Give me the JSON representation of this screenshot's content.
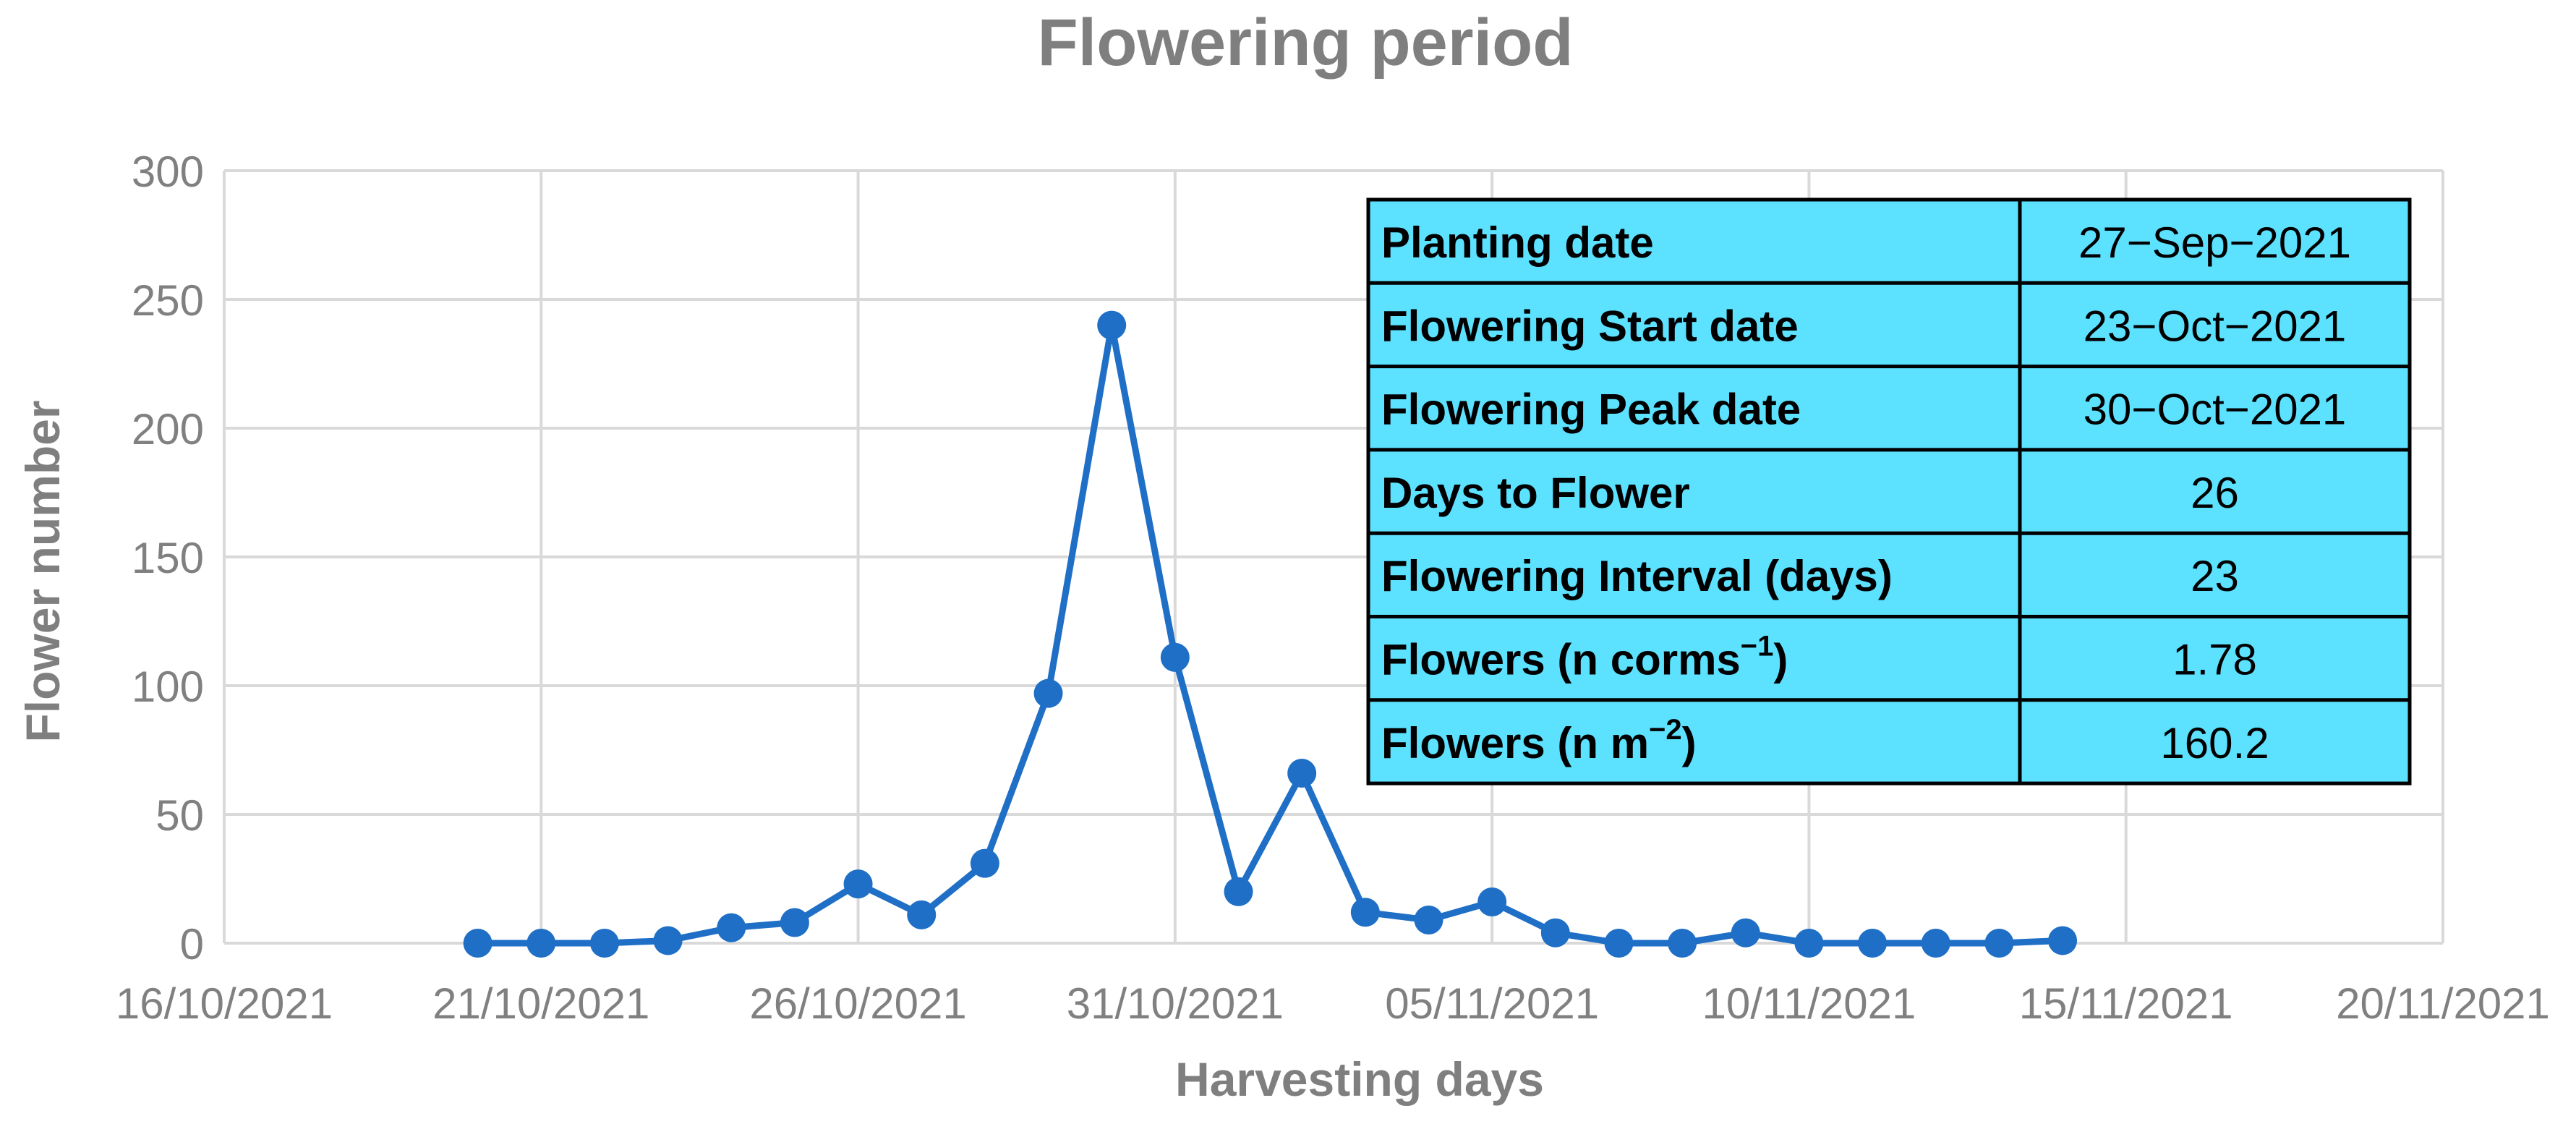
{
  "chart_data": {
    "type": "line",
    "title": "Flowering period",
    "xlabel": "Harvesting days",
    "ylabel": "Flower number",
    "x_tick_labels": [
      "16/10/2021",
      "21/10/2021",
      "26/10/2021",
      "31/10/2021",
      "05/11/2021",
      "10/11/2021",
      "15/11/2021",
      "20/11/2021"
    ],
    "y_tick_labels": [
      "0",
      "50",
      "100",
      "150",
      "200",
      "250",
      "300"
    ],
    "xlim": [
      "2021-10-16",
      "2021-11-20"
    ],
    "ylim": [
      0,
      300
    ],
    "grid": true,
    "series_color": "#1f6fc6",
    "table_fill": "#5ce1ff",
    "series": [
      {
        "x": [
          "2021-10-20",
          "2021-10-21",
          "2021-10-22",
          "2021-10-23",
          "2021-10-24",
          "2021-10-25",
          "2021-10-26",
          "2021-10-27",
          "2021-10-28",
          "2021-10-29",
          "2021-10-30",
          "2021-10-31",
          "2021-11-01",
          "2021-11-02",
          "2021-11-03",
          "2021-11-04",
          "2021-11-05",
          "2021-11-06",
          "2021-11-07",
          "2021-11-08",
          "2021-11-09",
          "2021-11-10",
          "2021-11-11",
          "2021-11-12",
          "2021-11-13",
          "2021-11-14"
        ],
        "values": [
          0,
          0,
          0,
          1,
          6,
          8,
          23,
          11,
          31,
          97,
          240,
          111,
          20,
          66,
          12,
          9,
          16,
          4,
          0,
          0,
          4,
          0,
          0,
          0,
          0,
          1
        ]
      }
    ],
    "inset_table": [
      {
        "label": "Planting date",
        "value": "27−Sep−2021"
      },
      {
        "label": "Flowering Start date",
        "value": "23−Oct−2021"
      },
      {
        "label": "Flowering Peak date",
        "value": "30−Oct−2021"
      },
      {
        "label": "Days to Flower",
        "value": "26"
      },
      {
        "label": "Flowering Interval (days)",
        "value": "23"
      },
      {
        "label_base": "Flowers (n corms",
        "label_sup": "−1",
        "label_tail": ")",
        "value": "1.78"
      },
      {
        "label_base": "Flowers (n m",
        "label_sup": "−2",
        "label_tail": ")",
        "value": "160.2"
      }
    ]
  }
}
